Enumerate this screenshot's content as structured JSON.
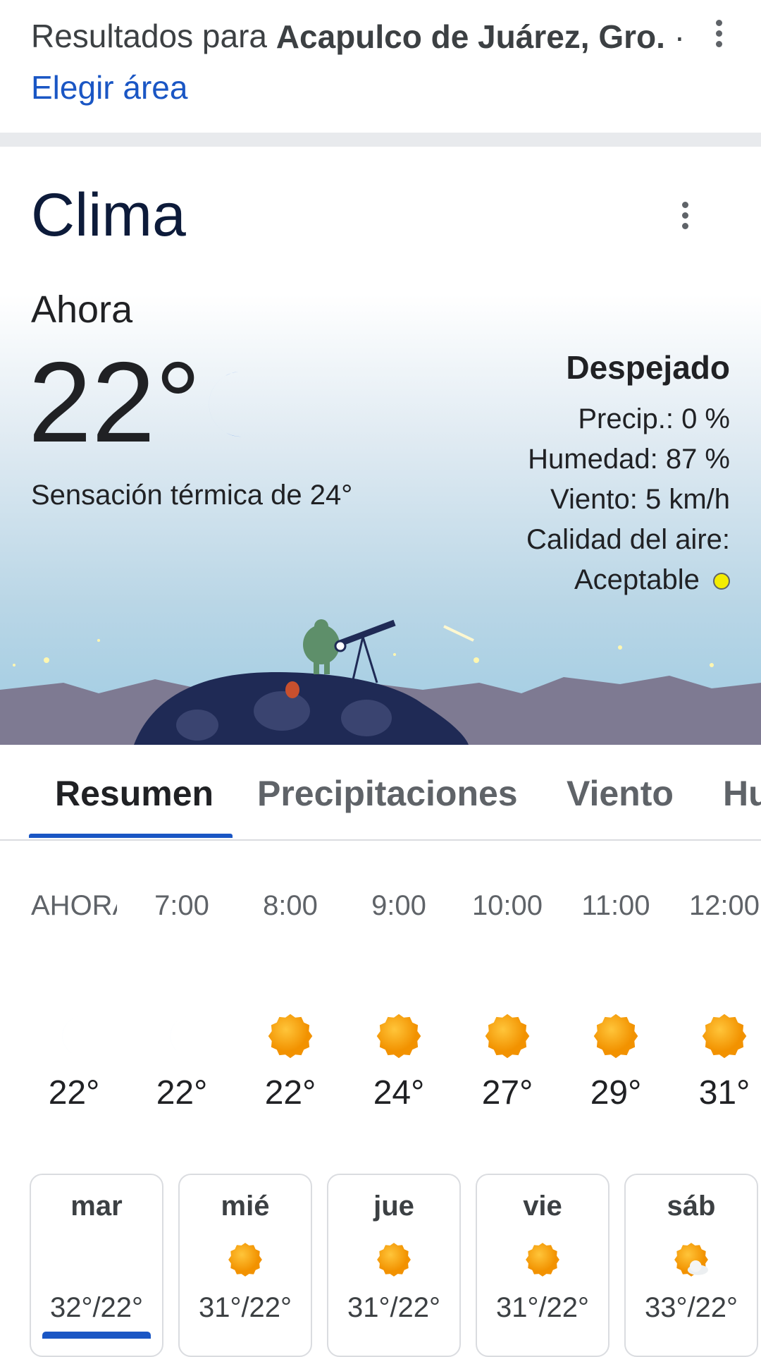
{
  "header": {
    "prefix": "Resultados para",
    "location": "Acapulco de Juárez, Gro.",
    "separator": "·",
    "link": "Elegir área"
  },
  "weather": {
    "title": "Clima",
    "now_label": "Ahora",
    "temperature": "22°",
    "icon": "moon",
    "feels_like": "Sensación térmica de 24°",
    "condition": "Despejado",
    "precip": "Precip.: 0 %",
    "humidity": "Humedad: 87 %",
    "wind": "Viento: 5 km/h",
    "air_quality_label": "Calidad del aire:",
    "air_quality": "Aceptable"
  },
  "tabs": [
    "Resumen",
    "Precipitaciones",
    "Viento",
    "Humedad"
  ],
  "hourly": [
    {
      "time": "AHORA",
      "icon": "moon",
      "temp": "22°"
    },
    {
      "time": "7:00",
      "icon": "moon",
      "temp": "22°"
    },
    {
      "time": "8:00",
      "icon": "sun",
      "temp": "22°"
    },
    {
      "time": "9:00",
      "icon": "sun",
      "temp": "24°"
    },
    {
      "time": "10:00",
      "icon": "sun",
      "temp": "27°"
    },
    {
      "time": "11:00",
      "icon": "sun",
      "temp": "29°"
    },
    {
      "time": "12:00",
      "icon": "sun",
      "temp": "31°"
    }
  ],
  "daily": [
    {
      "day": "mar",
      "icon": "moon",
      "temps": "32°/22°"
    },
    {
      "day": "mié",
      "icon": "sun",
      "temps": "31°/22°"
    },
    {
      "day": "jue",
      "icon": "sun",
      "temps": "31°/22°"
    },
    {
      "day": "vie",
      "icon": "sun",
      "temps": "31°/22°"
    },
    {
      "day": "sáb",
      "icon": "sun-cloud",
      "temps": "33°/22°"
    }
  ]
}
